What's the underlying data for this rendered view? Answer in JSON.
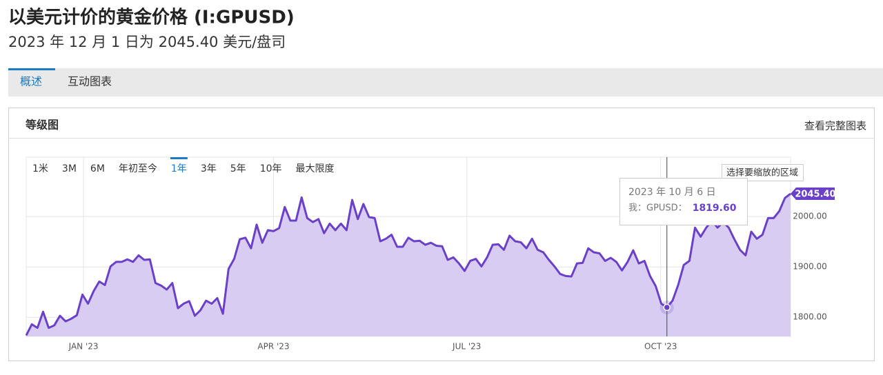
{
  "header": {
    "title": "以美元计价的黄金价格 (I:GPUSD)",
    "subtitle": "2023 年 12 月 1 日为 2045.40 美元/盘司"
  },
  "tabs": [
    "概述",
    "互动图表"
  ],
  "panel": {
    "title": "等级图",
    "link": "查看完整图表"
  },
  "ranges": [
    "1米",
    "3M",
    "6M",
    "年初至今",
    "1年",
    "3年",
    "5年",
    "10年",
    "最大限度"
  ],
  "zoom_button": "选择要缩放的区域",
  "chart_data": {
    "type": "area",
    "series": [
      {
        "name": "GPUSD",
        "color": "#6a3fc9",
        "fill": "#d8ccf2",
        "last_label": "2045.40",
        "values": [
          1764,
          1786,
          1779,
          1811,
          1779,
          1784,
          1803,
          1792,
          1797,
          1804,
          1845,
          1827,
          1852,
          1871,
          1864,
          1901,
          1910,
          1910,
          1915,
          1910,
          1923,
          1914,
          1915,
          1868,
          1863,
          1855,
          1868,
          1818,
          1827,
          1832,
          1803,
          1814,
          1833,
          1827,
          1838,
          1807,
          1896,
          1916,
          1955,
          1958,
          1937,
          1984,
          1948,
          1973,
          1971,
          1977,
          2019,
          1992,
          1992,
          2038,
          1997,
          1989,
          1995,
          1967,
          1986,
          1973,
          1986,
          1973,
          2033,
          1995,
          2025,
          1999,
          1997,
          1951,
          1956,
          1964,
          1940,
          1940,
          1958,
          1951,
          1952,
          1944,
          1948,
          1942,
          1941,
          1914,
          1919,
          1907,
          1892,
          1912,
          1916,
          1901,
          1919,
          1944,
          1945,
          1934,
          1962,
          1951,
          1949,
          1937,
          1956,
          1934,
          1929,
          1914,
          1901,
          1886,
          1882,
          1881,
          1907,
          1908,
          1937,
          1929,
          1927,
          1912,
          1918,
          1910,
          1893,
          1910,
          1933,
          1907,
          1912,
          1882,
          1862,
          1827,
          1819.6,
          1833,
          1864,
          1904,
          1912,
          1978,
          1960,
          1978,
          1992,
          1978,
          1989,
          1978,
          1955,
          1934,
          1923,
          1970,
          1956,
          1964,
          1997,
          1997,
          2011,
          2037,
          2045.4
        ]
      }
    ],
    "xlim": [
      0,
      136
    ],
    "xticks": [
      {
        "value": 10.2,
        "label": "JAN '23"
      },
      {
        "value": 44,
        "label": "APR '23"
      },
      {
        "value": 78.4,
        "label": "JUL '23"
      },
      {
        "value": 112.9,
        "label": "OCT '23"
      }
    ],
    "ylim": [
      1762,
      2118
    ],
    "yticks": [
      {
        "value": 1800,
        "label": "1800.00"
      },
      {
        "value": 1900,
        "label": "1900.00"
      },
      {
        "value": 2000,
        "label": "2000.00"
      }
    ],
    "grid": true,
    "tooltip": {
      "index": 114,
      "date": "2023 年 10 月 6 日",
      "series_label": "我：GPUSD：",
      "value_label": "1819.60"
    }
  }
}
